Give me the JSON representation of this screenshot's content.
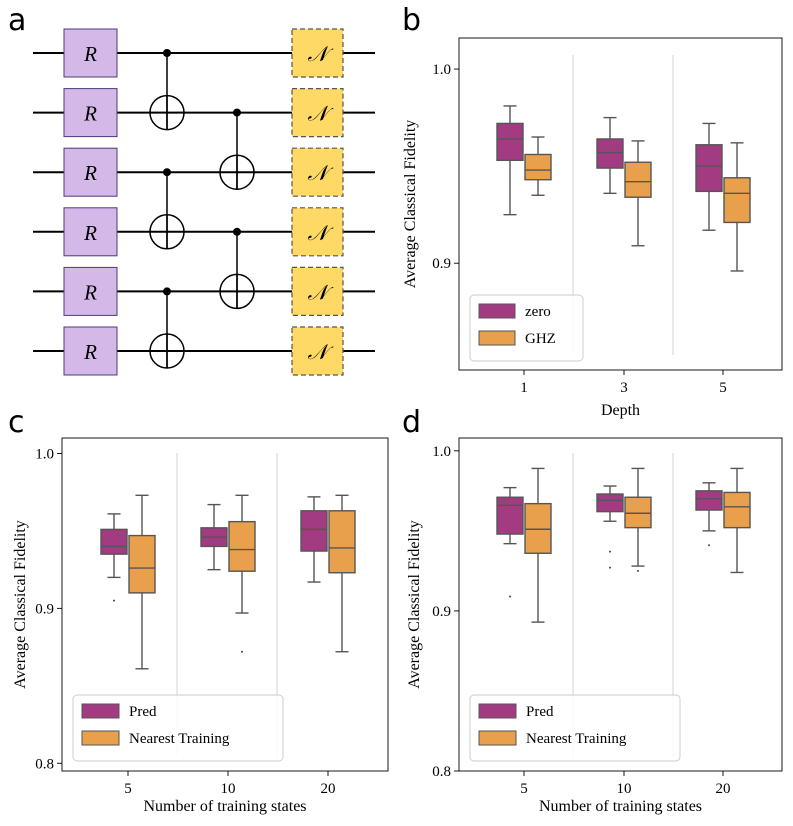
{
  "panels": {
    "a": "a",
    "b": "b",
    "c": "c",
    "d": "d"
  },
  "circuit": {
    "qubits": 6,
    "rotation_label": "R",
    "noise_label": "𝒩",
    "cnot_layer1": [
      [
        0,
        1
      ],
      [
        2,
        3
      ],
      [
        4,
        5
      ]
    ],
    "cnot_layer2": [
      [
        1,
        2
      ],
      [
        3,
        4
      ]
    ],
    "colors": {
      "rotation_fill": "#d4b8e8",
      "rotation_stroke": "#4b3a80",
      "noise_fill": "#ffd966",
      "noise_stroke": "#555555"
    }
  },
  "chart_data": [
    {
      "panel": "b",
      "type": "box",
      "ylabel": "Average Classical Fidelity",
      "xlabel": "Depth",
      "categories": [
        "1",
        "3",
        "5"
      ],
      "ylim": [
        0.845,
        1.016
      ],
      "yticks": [
        0.9,
        1.0
      ],
      "ytick_labels": [
        "0.9",
        "1.0"
      ],
      "series": [
        {
          "name": "zero",
          "color": "#a23b81",
          "boxes": [
            {
              "whislo": 0.925,
              "q1": 0.953,
              "med": 0.964,
              "q3": 0.972,
              "whishi": 0.981,
              "fliers": []
            },
            {
              "whislo": 0.936,
              "q1": 0.949,
              "med": 0.957,
              "q3": 0.964,
              "whishi": 0.975,
              "fliers": []
            },
            {
              "whislo": 0.917,
              "q1": 0.937,
              "med": 0.95,
              "q3": 0.961,
              "whishi": 0.972,
              "fliers": []
            }
          ]
        },
        {
          "name": "GHZ",
          "color": "#e8a04c",
          "boxes": [
            {
              "whislo": 0.935,
              "q1": 0.943,
              "med": 0.948,
              "q3": 0.956,
              "whishi": 0.965,
              "fliers": []
            },
            {
              "whislo": 0.909,
              "q1": 0.934,
              "med": 0.942,
              "q3": 0.952,
              "whishi": 0.963,
              "fliers": []
            },
            {
              "whislo": 0.896,
              "q1": 0.921,
              "med": 0.936,
              "q3": 0.944,
              "whishi": 0.962,
              "fliers": []
            }
          ]
        }
      ],
      "legend": {
        "position": "lower-left"
      }
    },
    {
      "panel": "c",
      "type": "box",
      "ylabel": "Average Classical Fidelity",
      "xlabel": "Number of training states",
      "categories": [
        "5",
        "10",
        "20"
      ],
      "ylim": [
        0.795,
        1.01
      ],
      "yticks": [
        0.8,
        0.9,
        1.0
      ],
      "ytick_labels": [
        "0.8",
        "0.9",
        "1.0"
      ],
      "series": [
        {
          "name": "Pred",
          "color": "#a23b81",
          "boxes": [
            {
              "whislo": 0.92,
              "q1": 0.935,
              "med": 0.94,
              "q3": 0.951,
              "whishi": 0.961,
              "fliers": [
                0.905
              ]
            },
            {
              "whislo": 0.925,
              "q1": 0.94,
              "med": 0.946,
              "q3": 0.952,
              "whishi": 0.967,
              "fliers": []
            },
            {
              "whislo": 0.917,
              "q1": 0.937,
              "med": 0.951,
              "q3": 0.963,
              "whishi": 0.972,
              "fliers": []
            }
          ]
        },
        {
          "name": "Nearest Training",
          "color": "#e8a04c",
          "boxes": [
            {
              "whislo": 0.861,
              "q1": 0.91,
              "med": 0.926,
              "q3": 0.947,
              "whishi": 0.973,
              "fliers": []
            },
            {
              "whislo": 0.897,
              "q1": 0.924,
              "med": 0.938,
              "q3": 0.956,
              "whishi": 0.973,
              "fliers": [
                0.872
              ]
            },
            {
              "whislo": 0.872,
              "q1": 0.923,
              "med": 0.939,
              "q3": 0.963,
              "whishi": 0.973,
              "fliers": []
            }
          ]
        }
      ],
      "legend": {
        "position": "lower-left"
      }
    },
    {
      "panel": "d",
      "type": "box",
      "ylabel": "Average Classical Fidelity",
      "xlabel": "Number of training states",
      "categories": [
        "5",
        "10",
        "20"
      ],
      "ylim": [
        0.8,
        1.008
      ],
      "yticks": [
        0.8,
        0.9,
        1.0
      ],
      "ytick_labels": [
        "0.8",
        "0.9",
        "1.0"
      ],
      "series": [
        {
          "name": "Pred",
          "color": "#a23b81",
          "boxes": [
            {
              "whislo": 0.942,
              "q1": 0.948,
              "med": 0.966,
              "q3": 0.971,
              "whishi": 0.977,
              "fliers": [
                0.909
              ]
            },
            {
              "whislo": 0.956,
              "q1": 0.962,
              "med": 0.969,
              "q3": 0.973,
              "whishi": 0.978,
              "fliers": [
                0.937,
                0.927
              ]
            },
            {
              "whislo": 0.95,
              "q1": 0.963,
              "med": 0.97,
              "q3": 0.975,
              "whishi": 0.98,
              "fliers": [
                0.941
              ]
            }
          ]
        },
        {
          "name": "Nearest Training",
          "color": "#e8a04c",
          "boxes": [
            {
              "whislo": 0.893,
              "q1": 0.936,
              "med": 0.951,
              "q3": 0.967,
              "whishi": 0.989,
              "fliers": []
            },
            {
              "whislo": 0.928,
              "q1": 0.952,
              "med": 0.961,
              "q3": 0.971,
              "whishi": 0.989,
              "fliers": [
                0.925
              ]
            },
            {
              "whislo": 0.924,
              "q1": 0.952,
              "med": 0.965,
              "q3": 0.974,
              "whishi": 0.989,
              "fliers": []
            }
          ]
        }
      ],
      "legend": {
        "position": "lower-left"
      }
    }
  ]
}
